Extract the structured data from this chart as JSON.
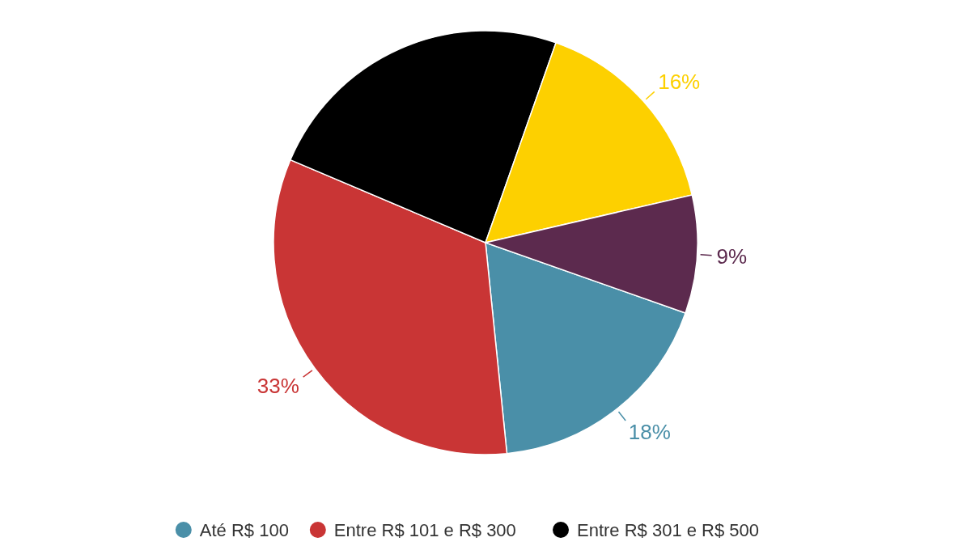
{
  "chart_data": {
    "type": "pie",
    "categories": [
      "Até R$ 100",
      "Entre R$ 101 e R$ 300",
      "Entre R$ 301 e R$ 500",
      null,
      null
    ],
    "values": [
      18,
      33,
      24,
      16,
      9
    ],
    "colors": [
      "#4a8fa8",
      "#c93535",
      "#000000",
      "#fdd000",
      "#5c2a4e"
    ],
    "value_labels": [
      "18%",
      "33%",
      null,
      "16%",
      "9%"
    ],
    "legend": "bottom"
  }
}
